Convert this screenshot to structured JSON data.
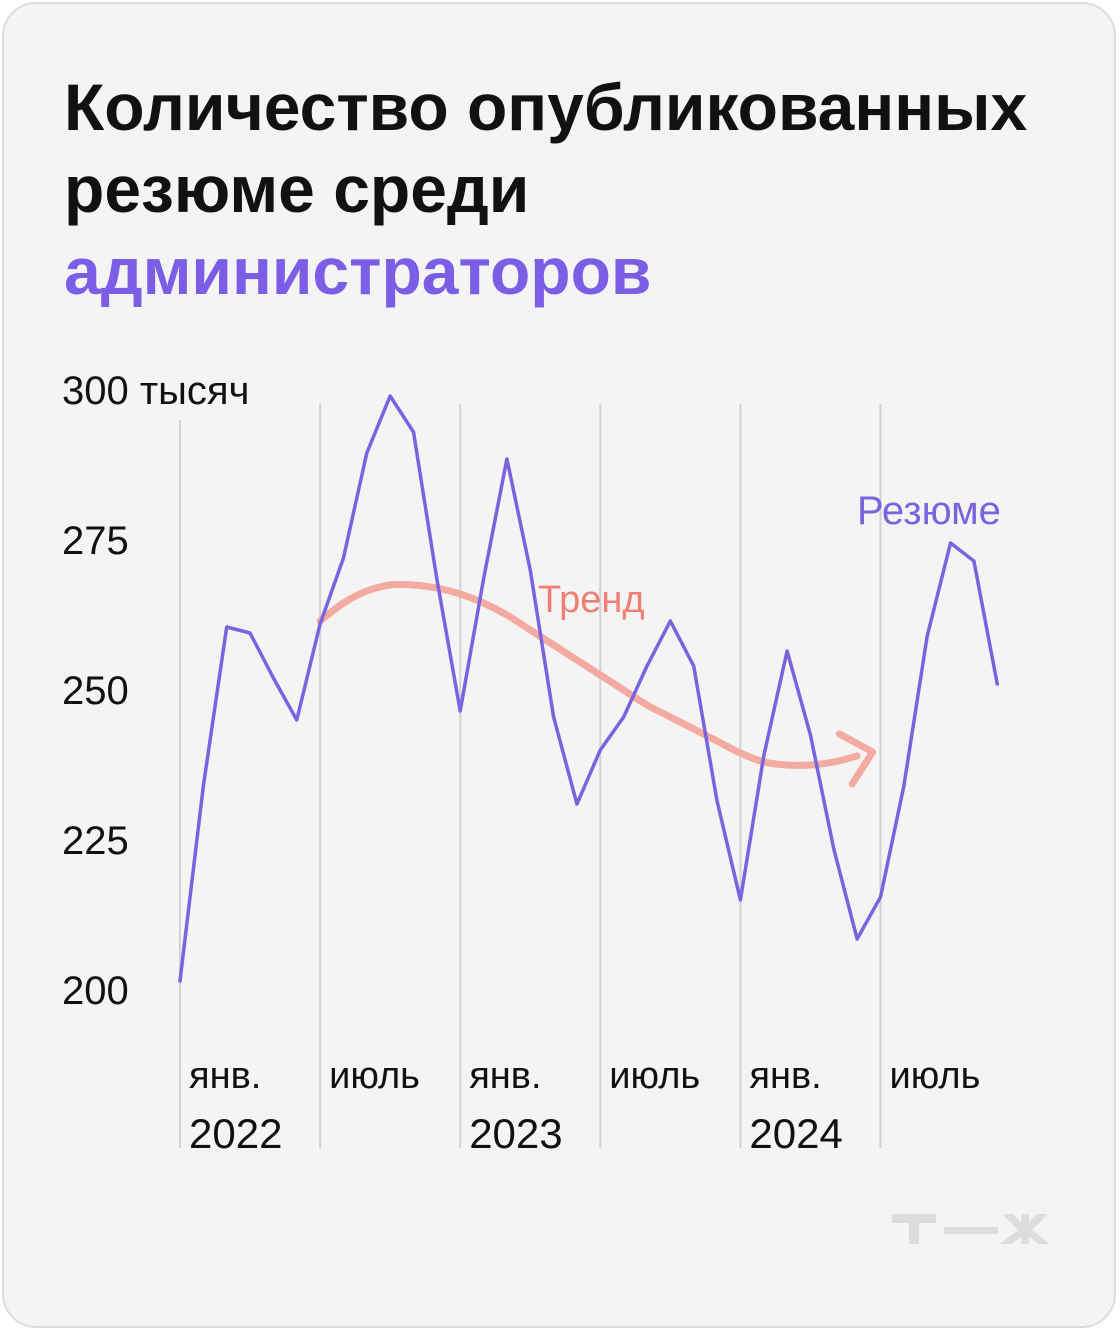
{
  "title": {
    "line1": "Количество опубликованных",
    "line2": "резюме среди",
    "accent": "администраторов"
  },
  "logo_text": "т—ж",
  "colors": {
    "background": "#f4f4f4",
    "series": "#7a63dd",
    "trend": "#f3aaa0",
    "trend_label": "#ef7f72",
    "grid": "#d2d2d2",
    "text": "#111111",
    "accent": "#7c5ee6",
    "logo": "#dddddd"
  },
  "chart_data": {
    "type": "line",
    "y_unit_label": "300 тысяч",
    "yticks": [
      {
        "value": 300,
        "label": "300 тысяч"
      },
      {
        "value": 275,
        "label": "275"
      },
      {
        "value": 250,
        "label": "250"
      },
      {
        "value": 225,
        "label": "225"
      },
      {
        "value": 200,
        "label": "200"
      }
    ],
    "ylim": [
      200,
      300
    ],
    "xticks": [
      {
        "month": 0,
        "line1": "янв.",
        "line2": "2022"
      },
      {
        "month": 6,
        "line1": "июль",
        "line2": ""
      },
      {
        "month": 12,
        "line1": "янв.",
        "line2": "2023"
      },
      {
        "month": 18,
        "line1": "июль",
        "line2": ""
      },
      {
        "month": 24,
        "line1": "янв.",
        "line2": "2024"
      },
      {
        "month": 30,
        "line1": "июль",
        "line2": ""
      }
    ],
    "series": [
      {
        "name": "Резюме",
        "values": [
          201.5,
          234,
          260.5,
          259.5,
          252,
          245,
          261,
          272,
          289.5,
          299,
          293,
          268.5,
          246.5,
          268.5,
          288.5,
          270,
          245.5,
          231,
          240,
          245.5,
          254,
          261.5,
          254,
          231.5,
          215,
          239,
          256.5,
          242.5,
          223.5,
          208.5,
          215.5,
          234,
          259,
          274.5,
          271.5,
          251
        ]
      }
    ],
    "trend": {
      "label": "Тренд",
      "points": [
        [
          6,
          261.5
        ],
        [
          7,
          264.5
        ],
        [
          8,
          266.5
        ],
        [
          9,
          267.5
        ],
        [
          10,
          267.5
        ],
        [
          11,
          267
        ],
        [
          12,
          266
        ],
        [
          13,
          264.5
        ],
        [
          14,
          262.5
        ],
        [
          15,
          260
        ],
        [
          16,
          257.5
        ],
        [
          17,
          255
        ],
        [
          18,
          252.5
        ],
        [
          19,
          250
        ],
        [
          20,
          247.5
        ],
        [
          21,
          245.5
        ],
        [
          22,
          243.5
        ],
        [
          23,
          241.5
        ],
        [
          24,
          239.5
        ],
        [
          25,
          238
        ],
        [
          26,
          237.5
        ],
        [
          27,
          237.5
        ],
        [
          28,
          238
        ],
        [
          29,
          239
        ]
      ]
    }
  }
}
